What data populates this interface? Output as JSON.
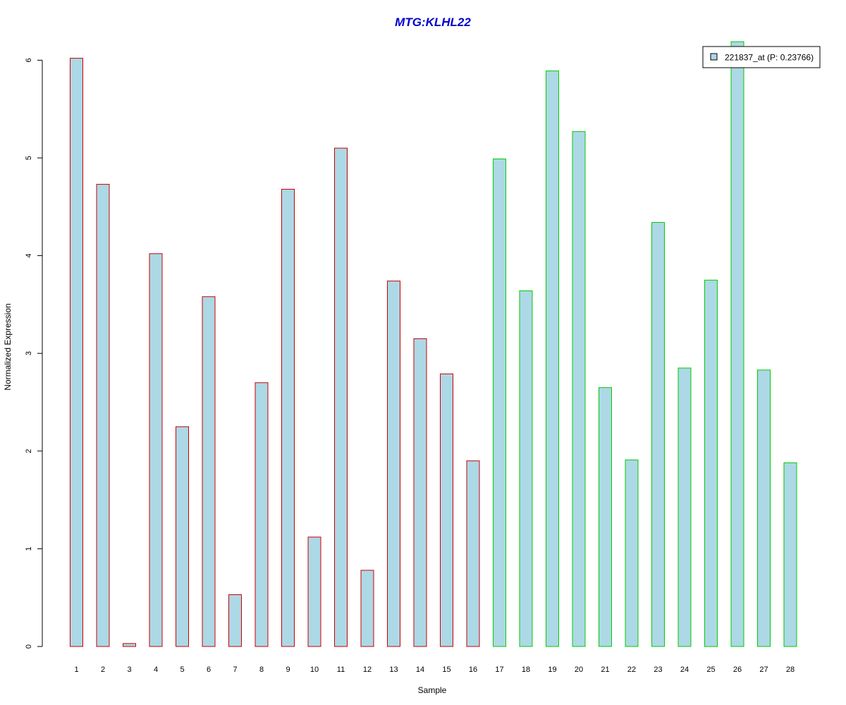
{
  "chart_data": {
    "type": "bar",
    "title": "MTG:KLHL22",
    "title_color": "#0000cc",
    "xlabel": "Sample",
    "ylabel": "Normalized Expression",
    "ylim": [
      0,
      6.2
    ],
    "yticks": [
      0,
      1,
      2,
      3,
      4,
      5,
      6
    ],
    "grid": false,
    "legend_position": "top-right",
    "bar_fill": "#add8e6",
    "categories": [
      "1",
      "2",
      "3",
      "4",
      "5",
      "6",
      "7",
      "8",
      "9",
      "10",
      "11",
      "12",
      "13",
      "14",
      "15",
      "16",
      "17",
      "18",
      "19",
      "20",
      "21",
      "22",
      "23",
      "24",
      "25",
      "26",
      "27",
      "28"
    ],
    "group_colors": [
      "#cc0000",
      "#00cc00"
    ],
    "groups": [
      0,
      0,
      0,
      0,
      0,
      0,
      0,
      0,
      0,
      0,
      0,
      0,
      0,
      0,
      0,
      0,
      1,
      1,
      1,
      1,
      1,
      1,
      1,
      1,
      1,
      1,
      1,
      1
    ],
    "series": [
      {
        "name": "221837_at (P: 0.23766)",
        "values": [
          6.02,
          4.73,
          0.03,
          4.02,
          2.25,
          3.58,
          0.53,
          2.7,
          4.68,
          1.12,
          5.1,
          0.78,
          3.74,
          3.15,
          2.79,
          1.9,
          4.99,
          3.64,
          5.89,
          5.27,
          2.65,
          1.91,
          4.34,
          2.85,
          3.75,
          6.19,
          2.83,
          1.88
        ]
      }
    ]
  }
}
